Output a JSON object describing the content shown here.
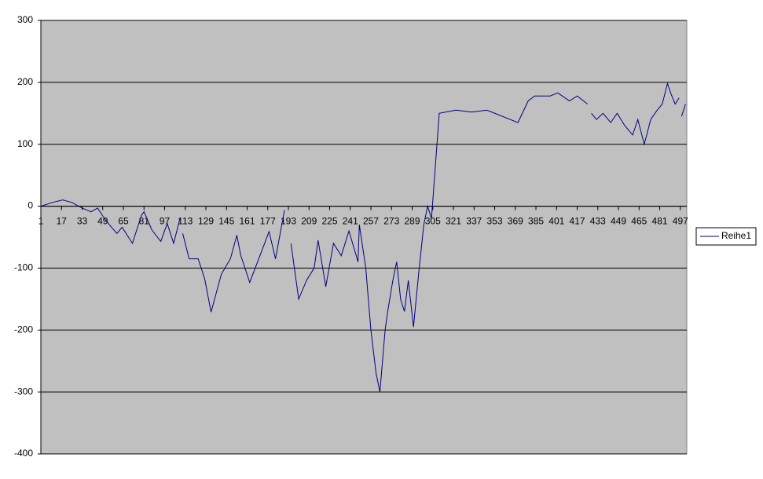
{
  "chart_data": {
    "type": "line",
    "x": [
      1,
      10,
      18,
      25,
      33,
      40,
      45,
      50,
      55,
      60,
      64,
      72,
      79,
      81,
      87,
      94,
      99,
      104,
      109,
      110,
      111,
      116,
      123,
      128,
      133,
      141,
      148,
      153,
      156,
      163,
      170,
      178,
      183,
      190,
      191,
      195,
      201,
      207,
      213,
      216,
      222,
      228,
      234,
      240,
      247,
      248,
      253,
      257,
      261,
      264,
      268,
      270,
      274,
      277,
      280,
      283,
      286,
      290,
      294,
      298,
      301,
      304,
      310,
      323,
      335,
      347,
      359,
      371,
      379,
      384,
      396,
      402,
      411,
      417,
      425,
      426,
      428,
      432,
      437,
      443,
      448,
      454,
      460,
      464,
      469,
      474,
      479,
      483,
      487,
      490,
      493,
      496,
      497,
      498,
      501
    ],
    "series": [
      {
        "name": "Reihe1",
        "color": "#000080",
        "values": [
          0,
          6,
          10,
          6,
          -3,
          -9,
          -3,
          -19,
          -32,
          -44,
          -34,
          -60,
          -15,
          -9,
          -38,
          -57,
          -28,
          -60,
          -19,
          null,
          -44,
          -85,
          -85,
          -117,
          -171,
          -110,
          -85,
          -47,
          -79,
          -123,
          -85,
          -41,
          -85,
          -6,
          null,
          -60,
          -150,
          -120,
          -100,
          -55,
          -130,
          -60,
          -80,
          -40,
          -90,
          -30,
          -100,
          -200,
          -270,
          -300,
          -200,
          -170,
          -120,
          -90,
          -150,
          -170,
          -120,
          -195,
          -110,
          -30,
          0,
          -20,
          150,
          155,
          152,
          155,
          145,
          135,
          170,
          178,
          178,
          183,
          170,
          178,
          165,
          null,
          150,
          140,
          150,
          135,
          150,
          130,
          115,
          140,
          100,
          140,
          155,
          165,
          198,
          180,
          165,
          175,
          null,
          145,
          165
        ]
      }
    ],
    "xlim": [
      1,
      502
    ],
    "xticks": [
      1,
      17,
      33,
      49,
      65,
      81,
      97,
      113,
      129,
      145,
      161,
      177,
      193,
      209,
      225,
      241,
      257,
      273,
      289,
      305,
      321,
      337,
      353,
      369,
      385,
      401,
      417,
      433,
      449,
      465,
      481,
      497
    ],
    "ylim": [
      -400,
      300
    ],
    "yticks": [
      -400,
      -300,
      -200,
      -100,
      0,
      100,
      200,
      300
    ],
    "grid": true,
    "legend": "right"
  }
}
